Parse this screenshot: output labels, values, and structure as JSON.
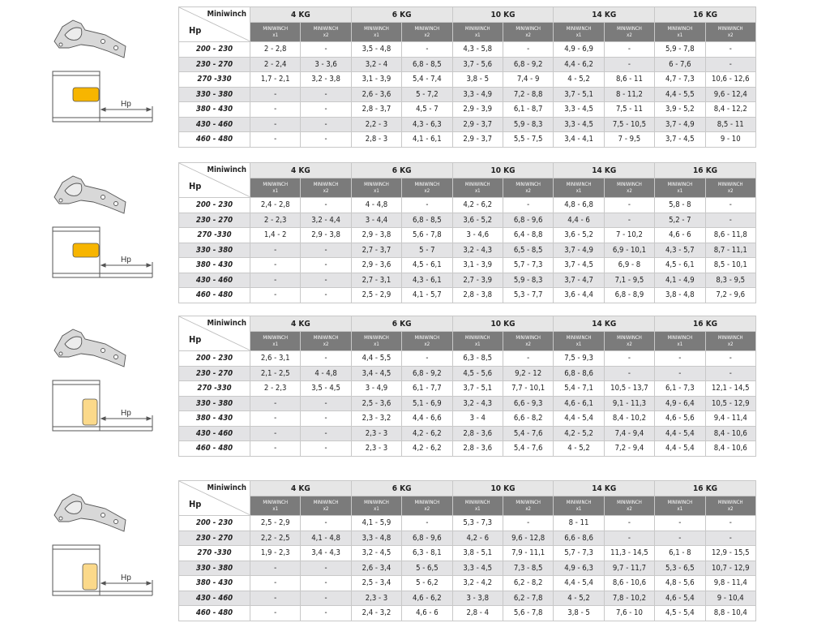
{
  "header": {
    "corner_top": "Miniwinch",
    "corner_bottom": "Hp",
    "weights": [
      "4 KG",
      "6 KG",
      "10 KG",
      "14 KG",
      "16 KG"
    ],
    "sub_name": "MINIWINCH",
    "sub_counts": [
      "x1",
      "x2"
    ]
  },
  "diagram": {
    "dimension_label": "Hp",
    "colors": {
      "mount_solid": "#f7b500",
      "mount_light": "#fbd98a"
    },
    "icons": [
      "hinge-icon",
      "cabinet-section-icon"
    ]
  },
  "tables": [
    {
      "rows": [
        {
          "hp": "200 - 230",
          "values": [
            "2 - 2,8",
            "-",
            "3,5 - 4,8",
            "-",
            "4,3 - 5,8",
            "-",
            "4,9 - 6,9",
            "-",
            "5,9 - 7,8",
            "-"
          ]
        },
        {
          "hp": "230 - 270",
          "values": [
            "2 - 2,4",
            "3 - 3,6",
            "3,2 - 4",
            "6,8 - 8,5",
            "3,7 - 5,6",
            "6,8 - 9,2",
            "4,4 - 6,2",
            "-",
            "6 - 7,6",
            "-"
          ]
        },
        {
          "hp": "270 -330",
          "values": [
            "1,7 - 2,1",
            "3,2 - 3,8",
            "3,1 - 3,9",
            "5,4 - 7,4",
            "3,8 - 5",
            "7,4 - 9",
            "4 - 5,2",
            "8,6 - 11",
            "4,7 - 7,3",
            "10,6 - 12,6"
          ]
        },
        {
          "hp": "330 - 380",
          "values": [
            "-",
            "-",
            "2,6 - 3,6",
            "5 - 7,2",
            "3,3 - 4,9",
            "7,2 - 8,8",
            "3,7 - 5,1",
            "8 - 11,2",
            "4,4 - 5,5",
            "9,6 - 12,4"
          ]
        },
        {
          "hp": "380 - 430",
          "values": [
            "-",
            "-",
            "2,8 - 3,7",
            "4,5 - 7",
            "2,9 - 3,9",
            "6,1 - 8,7",
            "3,3 - 4,5",
            "7,5 - 11",
            "3,9 - 5,2",
            "8,4 - 12,2"
          ]
        },
        {
          "hp": "430 - 460",
          "values": [
            "-",
            "-",
            "2,2 - 3",
            "4,3 - 6,3",
            "2,9 - 3,7",
            "5,9 - 8,3",
            "3,3 - 4,5",
            "7,5 - 10,5",
            "3,7 - 4,9",
            "8,5 - 11"
          ]
        },
        {
          "hp": "460 - 480",
          "values": [
            "-",
            "-",
            "2,8 - 3",
            "4,1 - 6,1",
            "2,9 - 3,7",
            "5,5 - 7,5",
            "3,4 - 4,1",
            "7 - 9,5",
            "3,7 - 4,5",
            "9 - 10"
          ]
        }
      ]
    },
    {
      "rows": [
        {
          "hp": "200 - 230",
          "values": [
            "2,4 - 2,8",
            "-",
            "4 - 4,8",
            "-",
            "4,2 - 6,2",
            "-",
            "4,8 - 6,8",
            "-",
            "5,8 - 8",
            "-"
          ]
        },
        {
          "hp": "230 - 270",
          "values": [
            "2 - 2,3",
            "3,2 - 4,4",
            "3 - 4,4",
            "6,8 - 8,5",
            "3,6 - 5,2",
            "6,8 - 9,6",
            "4,4 - 6",
            "-",
            "5,2 - 7",
            "-"
          ]
        },
        {
          "hp": "270 -330",
          "values": [
            "1,4 - 2",
            "2,9 - 3,8",
            "2,9 - 3,8",
            "5,6 - 7,8",
            "3 - 4,6",
            "6,4 - 8,8",
            "3,6 - 5,2",
            "7 - 10,2",
            "4,6 - 6",
            "8,6 - 11,8"
          ]
        },
        {
          "hp": "330 - 380",
          "values": [
            "-",
            "-",
            "2,7 - 3,7",
            "5 - 7",
            "3,2 - 4,3",
            "6,5 - 8,5",
            "3,7 - 4,9",
            "6,9 - 10,1",
            "4,3 - 5,7",
            "8,7 - 11,1"
          ]
        },
        {
          "hp": "380 - 430",
          "values": [
            "-",
            "-",
            "2,9 - 3,6",
            "4,5 - 6,1",
            "3,1 - 3,9",
            "5,7 - 7,3",
            "3,7 - 4,5",
            "6,9 - 8",
            "4,5 - 6,1",
            "8,5 - 10,1"
          ]
        },
        {
          "hp": "430 - 460",
          "values": [
            "-",
            "-",
            "2,7 - 3,1",
            "4,3 - 6,1",
            "2,7 - 3,9",
            "5,9 - 8,3",
            "3,7 - 4,7",
            "7,1 - 9,5",
            "4,1 - 4,9",
            "8,3 - 9,5"
          ]
        },
        {
          "hp": "460 - 480",
          "values": [
            "-",
            "-",
            "2,5 - 2,9",
            "4,1 - 5,7",
            "2,8 - 3,8",
            "5,3 - 7,7",
            "3,6 - 4,4",
            "6,8 - 8,9",
            "3,8 - 4,8",
            "7,2 - 9,6"
          ]
        }
      ]
    },
    {
      "rows": [
        {
          "hp": "200 - 230",
          "values": [
            "2,6 - 3,1",
            "-",
            "4,4 - 5,5",
            "-",
            "6,3 - 8,5",
            "-",
            "7,5 - 9,3",
            "-",
            "-",
            "-"
          ]
        },
        {
          "hp": "230 - 270",
          "values": [
            "2,1 - 2,5",
            "4 - 4,8",
            "3,4 - 4,5",
            "6,8 - 9,2",
            "4,5 - 5,6",
            "9,2 - 12",
            "6,8 - 8,6",
            "-",
            "-",
            "-"
          ]
        },
        {
          "hp": "270 -330",
          "values": [
            "2 - 2,3",
            "3,5 - 4,5",
            "3 - 4,9",
            "6,1 - 7,7",
            "3,7 - 5,1",
            "7,7 - 10,1",
            "5,4 - 7,1",
            "10,5 - 13,7",
            "6,1 - 7,3",
            "12,1 - 14,5"
          ]
        },
        {
          "hp": "330 - 380",
          "values": [
            "-",
            "-",
            "2,5 - 3,6",
            "5,1 - 6,9",
            "3,2 - 4,3",
            "6,6 - 9,3",
            "4,6 - 6,1",
            "9,1 - 11,3",
            "4,9 - 6,4",
            "10,5 - 12,9"
          ]
        },
        {
          "hp": "380 - 430",
          "values": [
            "-",
            "-",
            "2,3 - 3,2",
            "4,4 - 6,6",
            "3 - 4",
            "6,6 - 8,2",
            "4,4 - 5,4",
            "8,4 - 10,2",
            "4,6 - 5,6",
            "9,4 - 11,4"
          ]
        },
        {
          "hp": "430 - 460",
          "values": [
            "-",
            "-",
            "2,3 - 3",
            "4,2 - 6,2",
            "2,8 - 3,6",
            "5,4 - 7,6",
            "4,2 - 5,2",
            "7,4 - 9,4",
            "4,4 - 5,4",
            "8,4 - 10,6"
          ]
        },
        {
          "hp": "460 - 480",
          "values": [
            "-",
            "-",
            "2,3 - 3",
            "4,2 - 6,2",
            "2,8 - 3,6",
            "5,4 - 7,6",
            "4 - 5,2",
            "7,2 - 9,4",
            "4,4 - 5,4",
            "8,4 - 10,6"
          ]
        }
      ]
    },
    {
      "rows": [
        {
          "hp": "200 - 230",
          "values": [
            "2,5 - 2,9",
            "-",
            "4,1 - 5,9",
            "-",
            "5,3 - 7,3",
            "-",
            "8 - 11",
            "-",
            "-",
            "-"
          ]
        },
        {
          "hp": "230 - 270",
          "values": [
            "2,2 - 2,5",
            "4,1 - 4,8",
            "3,3 - 4,8",
            "6,8 - 9,6",
            "4,2 - 6",
            "9,6 - 12,8",
            "6,6 - 8,6",
            "-",
            "-",
            "-"
          ]
        },
        {
          "hp": "270 -330",
          "values": [
            "1,9 - 2,3",
            "3,4 - 4,3",
            "3,2 - 4,5",
            "6,3 - 8,1",
            "3,8 - 5,1",
            "7,9 - 11,1",
            "5,7 - 7,3",
            "11,3 - 14,5",
            "6,1 - 8",
            "12,9 - 15,5"
          ]
        },
        {
          "hp": "330 - 380",
          "values": [
            "-",
            "-",
            "2,6 - 3,4",
            "5 - 6,5",
            "3,3 - 4,5",
            "7,3 - 8,5",
            "4,9 - 6,3",
            "9,7 - 11,7",
            "5,3 - 6,5",
            "10,7 - 12,9"
          ]
        },
        {
          "hp": "380 - 430",
          "values": [
            "-",
            "-",
            "2,5 - 3,4",
            "5 - 6,2",
            "3,2 - 4,2",
            "6,2 - 8,2",
            "4,4 - 5,4",
            "8,6 - 10,6",
            "4,8 - 5,6",
            "9,8 - 11,4"
          ]
        },
        {
          "hp": "430 - 460",
          "values": [
            "-",
            "-",
            "2,3 - 3",
            "4,6 - 6,2",
            "3 - 3,8",
            "6,2 - 7,8",
            "4 - 5,2",
            "7,8 - 10,2",
            "4,6 - 5,4",
            "9 - 10,4"
          ]
        },
        {
          "hp": "460 - 480",
          "values": [
            "-",
            "-",
            "2,4 - 3,2",
            "4,6 - 6",
            "2,8 - 4",
            "5,6 - 7,8",
            "3,8 - 5",
            "7,6 - 10",
            "4,5 - 5,4",
            "8,8 - 10,4"
          ]
        }
      ]
    }
  ]
}
